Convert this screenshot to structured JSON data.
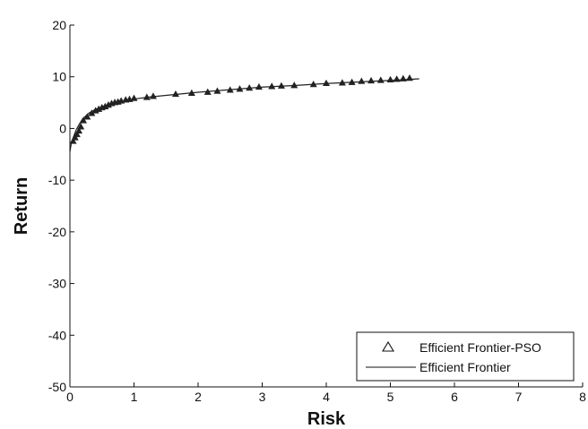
{
  "chart_data": {
    "type": "line",
    "title": "",
    "xlabel": "Risk",
    "ylabel": "Return",
    "xlim": [
      0,
      8
    ],
    "ylim": [
      -50,
      20
    ],
    "xticks": [
      0,
      1,
      2,
      3,
      4,
      5,
      6,
      7,
      8
    ],
    "yticks": [
      -50,
      -40,
      -30,
      -20,
      -10,
      0,
      10,
      20
    ],
    "grid": false,
    "legend_position": "bottom-right",
    "series": [
      {
        "name": "Efficient Frontier-PSO",
        "kind": "markers",
        "marker": "triangle",
        "x": [
          0.05,
          0.08,
          0.11,
          0.14,
          0.17,
          0.21,
          0.27,
          0.34,
          0.4,
          0.45,
          0.5,
          0.55,
          0.6,
          0.65,
          0.7,
          0.75,
          0.8,
          0.87,
          0.93,
          1.0,
          1.2,
          1.3,
          1.65,
          1.9,
          2.15,
          2.3,
          2.5,
          2.65,
          2.8,
          2.95,
          3.15,
          3.3,
          3.5,
          3.8,
          4.0,
          4.25,
          4.4,
          4.55,
          4.7,
          4.85,
          5.0,
          5.1,
          5.2,
          5.3
        ],
        "y": [
          -2.5,
          -1.8,
          -1.2,
          -0.5,
          0.3,
          1.5,
          2.2,
          2.9,
          3.4,
          3.7,
          4.0,
          4.2,
          4.5,
          4.8,
          5.0,
          5.1,
          5.3,
          5.5,
          5.6,
          5.8,
          6.0,
          6.2,
          6.6,
          6.8,
          7.0,
          7.2,
          7.4,
          7.6,
          7.8,
          8.0,
          8.1,
          8.2,
          8.3,
          8.5,
          8.7,
          8.8,
          8.9,
          9.1,
          9.2,
          9.3,
          9.4,
          9.5,
          9.6,
          9.7
        ]
      },
      {
        "name": "Efficient Frontier",
        "kind": "line",
        "x": [
          0.0,
          0.02,
          0.05,
          0.1,
          0.15,
          0.2,
          0.3,
          0.4,
          0.5,
          0.6,
          0.7,
          0.8,
          1.0,
          1.25,
          1.5,
          2.0,
          2.5,
          3.0,
          3.5,
          4.0,
          4.5,
          5.0,
          5.3,
          5.45
        ],
        "y": [
          -4.5,
          -3.0,
          -1.8,
          -0.2,
          0.9,
          1.9,
          3.0,
          3.7,
          4.2,
          4.6,
          5.0,
          5.2,
          5.7,
          6.1,
          6.4,
          7.0,
          7.5,
          8.0,
          8.3,
          8.7,
          9.0,
          9.3,
          9.5,
          9.6
        ]
      }
    ],
    "colors": {
      "axis": "#111111",
      "series_line": "#222222",
      "marker_fill": "#222222"
    }
  }
}
